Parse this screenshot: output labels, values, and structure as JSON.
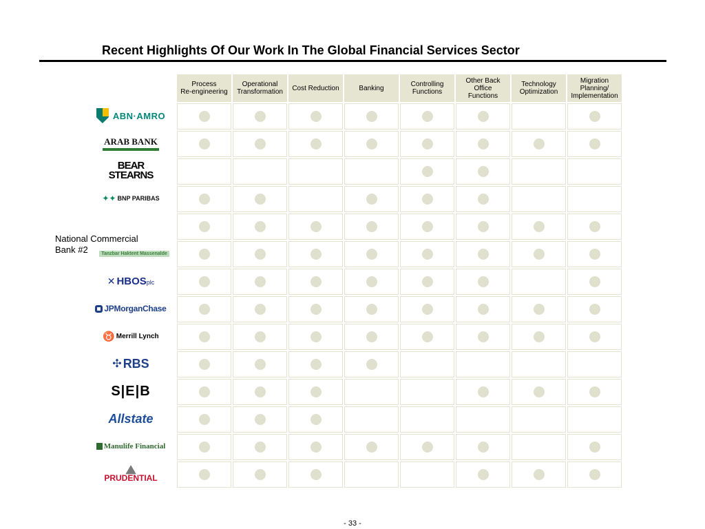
{
  "title": "Recent Highlights Of Our Work In The Global Financial Services Sector",
  "columns": [
    "Process\nRe-engineering",
    "Operational\nTransformation",
    "Cost Reduction",
    "Banking",
    "Controlling\nFunctions",
    "Other Back\nOffice\nFunctions",
    "Technology\nOptimization",
    "Migration\nPlanning/\nImplementation"
  ],
  "logos": [
    {
      "id": "abn-amro",
      "text": "ABN·AMRO"
    },
    {
      "id": "arab-bank",
      "text": "ARAB BANK"
    },
    {
      "id": "bear-stearns",
      "text": "BEAR\nSTEARNS"
    },
    {
      "id": "bnp-paribas",
      "text": "BNP PARIBAS"
    },
    {
      "id": "blank",
      "text": ""
    },
    {
      "id": "national-commercial-bank",
      "text": "Tanzbar Haktent Massenalde"
    },
    {
      "id": "hbos",
      "text": "HBOS",
      "suffix": "plc"
    },
    {
      "id": "jpmorgan-chase",
      "text": "JPMorganChase"
    },
    {
      "id": "merrill-lynch",
      "text": "Merrill Lynch"
    },
    {
      "id": "rbs",
      "text": "RBS"
    },
    {
      "id": "seb",
      "text": "S|E|B"
    },
    {
      "id": "allstate",
      "text": "Allstate"
    },
    {
      "id": "manulife",
      "text": "Manulife Financial"
    },
    {
      "id": "prudential",
      "text": "PRUDENTIAL"
    }
  ],
  "ncb_caption": "National Commercial\nBank #2",
  "matrix": [
    [
      1,
      1,
      1,
      1,
      1,
      1,
      0,
      1
    ],
    [
      1,
      1,
      1,
      1,
      1,
      1,
      1,
      1
    ],
    [
      0,
      0,
      0,
      0,
      1,
      1,
      0,
      0
    ],
    [
      1,
      1,
      0,
      1,
      1,
      1,
      0,
      0
    ],
    [
      1,
      1,
      1,
      1,
      1,
      1,
      1,
      1
    ],
    [
      1,
      1,
      1,
      1,
      1,
      1,
      1,
      1
    ],
    [
      1,
      1,
      1,
      1,
      1,
      1,
      0,
      1
    ],
    [
      1,
      1,
      1,
      1,
      1,
      1,
      1,
      1
    ],
    [
      1,
      1,
      1,
      1,
      1,
      1,
      1,
      1
    ],
    [
      1,
      1,
      1,
      1,
      0,
      0,
      0,
      0
    ],
    [
      1,
      1,
      1,
      0,
      0,
      1,
      1,
      1
    ],
    [
      1,
      1,
      1,
      0,
      0,
      0,
      0,
      0
    ],
    [
      1,
      1,
      1,
      1,
      1,
      1,
      0,
      1
    ],
    [
      1,
      1,
      1,
      0,
      0,
      1,
      1,
      1
    ]
  ],
  "colors": {
    "header_bg": "#e6e5d2",
    "dot": "#e0e0cf",
    "cell_border": "#e4e3d2"
  },
  "page_number": "- 33 -"
}
